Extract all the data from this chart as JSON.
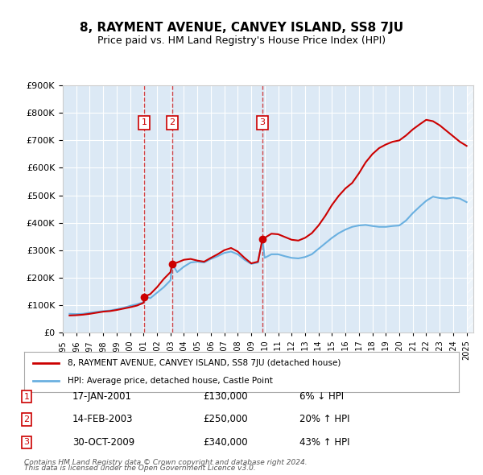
{
  "title": "8, RAYMENT AVENUE, CANVEY ISLAND, SS8 7JU",
  "subtitle": "Price paid vs. HM Land Registry's House Price Index (HPI)",
  "legend_line1": "8, RAYMENT AVENUE, CANVEY ISLAND, SS8 7JU (detached house)",
  "legend_line2": "HPI: Average price, detached house, Castle Point",
  "transactions": [
    {
      "num": 1,
      "date": "17-JAN-2001",
      "price": 130000,
      "pct": "6%",
      "dir": "↓",
      "x_year": 2001.05
    },
    {
      "num": 2,
      "date": "14-FEB-2003",
      "price": 250000,
      "pct": "20%",
      "dir": "↑",
      "x_year": 2003.12
    },
    {
      "num": 3,
      "date": "30-OCT-2009",
      "price": 340000,
      "pct": "43%",
      "dir": "↑",
      "x_year": 2009.83
    }
  ],
  "footnote1": "Contains HM Land Registry data © Crown copyright and database right 2024.",
  "footnote2": "This data is licensed under the Open Government Licence v3.0.",
  "hpi_color": "#6ab0e0",
  "price_color": "#cc0000",
  "background_color": "#ffffff",
  "plot_bg_color": "#dce9f5",
  "grid_color": "#ffffff",
  "ylim": [
    0,
    900000
  ],
  "yticks": [
    0,
    100000,
    200000,
    300000,
    400000,
    500000,
    600000,
    700000,
    800000,
    900000
  ],
  "xlim_start": 1995.0,
  "xlim_end": 2025.5,
  "xtick_years": [
    1995,
    1996,
    1997,
    1998,
    1999,
    2000,
    2001,
    2002,
    2003,
    2004,
    2005,
    2006,
    2007,
    2008,
    2009,
    2010,
    2011,
    2012,
    2013,
    2014,
    2015,
    2016,
    2017,
    2018,
    2019,
    2020,
    2021,
    2022,
    2023,
    2024,
    2025
  ],
  "hpi_data": [
    [
      1995.5,
      68000
    ],
    [
      1996.0,
      67000
    ],
    [
      1996.5,
      68000
    ],
    [
      1997.0,
      72000
    ],
    [
      1997.5,
      75000
    ],
    [
      1998.0,
      78000
    ],
    [
      1998.5,
      80000
    ],
    [
      1999.0,
      85000
    ],
    [
      1999.5,
      90000
    ],
    [
      2000.0,
      97000
    ],
    [
      2000.5,
      103000
    ],
    [
      2001.0,
      110000
    ],
    [
      2001.1,
      130000
    ],
    [
      2001.5,
      125000
    ],
    [
      2002.0,
      145000
    ],
    [
      2002.5,
      165000
    ],
    [
      2003.0,
      190000
    ],
    [
      2003.12,
      250000
    ],
    [
      2003.5,
      220000
    ],
    [
      2004.0,
      240000
    ],
    [
      2004.5,
      255000
    ],
    [
      2005.0,
      258000
    ],
    [
      2005.5,
      255000
    ],
    [
      2006.0,
      268000
    ],
    [
      2006.5,
      278000
    ],
    [
      2007.0,
      290000
    ],
    [
      2007.5,
      295000
    ],
    [
      2008.0,
      285000
    ],
    [
      2008.5,
      265000
    ],
    [
      2009.0,
      250000
    ],
    [
      2009.5,
      255000
    ],
    [
      2009.83,
      340000
    ],
    [
      2010.0,
      272000
    ],
    [
      2010.5,
      285000
    ],
    [
      2011.0,
      285000
    ],
    [
      2011.5,
      278000
    ],
    [
      2012.0,
      272000
    ],
    [
      2012.5,
      270000
    ],
    [
      2013.0,
      275000
    ],
    [
      2013.5,
      285000
    ],
    [
      2014.0,
      305000
    ],
    [
      2014.5,
      325000
    ],
    [
      2015.0,
      345000
    ],
    [
      2015.5,
      362000
    ],
    [
      2016.0,
      375000
    ],
    [
      2016.5,
      385000
    ],
    [
      2017.0,
      390000
    ],
    [
      2017.5,
      392000
    ],
    [
      2018.0,
      388000
    ],
    [
      2018.5,
      385000
    ],
    [
      2019.0,
      385000
    ],
    [
      2019.5,
      388000
    ],
    [
      2020.0,
      390000
    ],
    [
      2020.5,
      408000
    ],
    [
      2021.0,
      435000
    ],
    [
      2021.5,
      458000
    ],
    [
      2022.0,
      480000
    ],
    [
      2022.5,
      495000
    ],
    [
      2023.0,
      490000
    ],
    [
      2023.5,
      488000
    ],
    [
      2024.0,
      492000
    ],
    [
      2024.5,
      488000
    ],
    [
      2025.0,
      475000
    ]
  ],
  "price_data": [
    [
      1995.5,
      62000
    ],
    [
      1996.0,
      63000
    ],
    [
      1996.5,
      65000
    ],
    [
      1997.0,
      68000
    ],
    [
      1997.5,
      72000
    ],
    [
      1998.0,
      76000
    ],
    [
      1998.5,
      78000
    ],
    [
      1999.0,
      82000
    ],
    [
      1999.5,
      87000
    ],
    [
      2000.0,
      92000
    ],
    [
      2000.5,
      98000
    ],
    [
      2001.0,
      108000
    ],
    [
      2001.05,
      130000
    ],
    [
      2001.5,
      140000
    ],
    [
      2002.0,
      165000
    ],
    [
      2002.5,
      195000
    ],
    [
      2003.0,
      220000
    ],
    [
      2003.12,
      250000
    ],
    [
      2003.5,
      255000
    ],
    [
      2004.0,
      265000
    ],
    [
      2004.5,
      268000
    ],
    [
      2005.0,
      262000
    ],
    [
      2005.5,
      258000
    ],
    [
      2006.0,
      272000
    ],
    [
      2006.5,
      285000
    ],
    [
      2007.0,
      300000
    ],
    [
      2007.5,
      308000
    ],
    [
      2008.0,
      295000
    ],
    [
      2008.5,
      272000
    ],
    [
      2009.0,
      252000
    ],
    [
      2009.5,
      258000
    ],
    [
      2009.83,
      340000
    ],
    [
      2010.0,
      345000
    ],
    [
      2010.5,
      360000
    ],
    [
      2011.0,
      358000
    ],
    [
      2011.5,
      348000
    ],
    [
      2012.0,
      338000
    ],
    [
      2012.5,
      335000
    ],
    [
      2013.0,
      345000
    ],
    [
      2013.5,
      362000
    ],
    [
      2014.0,
      390000
    ],
    [
      2014.5,
      425000
    ],
    [
      2015.0,
      465000
    ],
    [
      2015.5,
      498000
    ],
    [
      2016.0,
      525000
    ],
    [
      2016.5,
      545000
    ],
    [
      2017.0,
      580000
    ],
    [
      2017.5,
      620000
    ],
    [
      2018.0,
      650000
    ],
    [
      2018.5,
      672000
    ],
    [
      2019.0,
      685000
    ],
    [
      2019.5,
      695000
    ],
    [
      2020.0,
      700000
    ],
    [
      2020.5,
      718000
    ],
    [
      2021.0,
      740000
    ],
    [
      2021.5,
      758000
    ],
    [
      2022.0,
      775000
    ],
    [
      2022.5,
      770000
    ],
    [
      2023.0,
      755000
    ],
    [
      2023.5,
      735000
    ],
    [
      2024.0,
      715000
    ],
    [
      2024.5,
      695000
    ],
    [
      2025.0,
      680000
    ]
  ]
}
